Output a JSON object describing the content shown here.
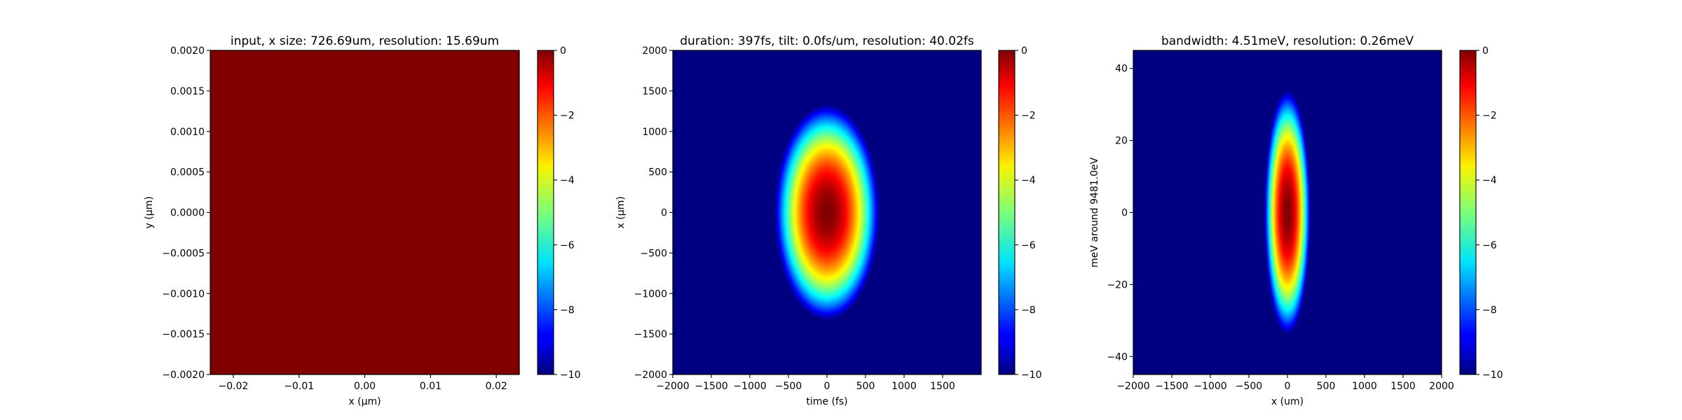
{
  "figure": {
    "background": "#ffffff"
  },
  "chart_data": [
    {
      "type": "heatmap",
      "title": "input, x size: 726.69um, resolution: 15.69um",
      "xlabel": "x ($\\mu$m)",
      "xlabel_display": "x (μm)",
      "ylabel": "y ($\\mu$m)",
      "ylabel_display": "y (μm)",
      "xlim": [
        -0.0235,
        0.0235
      ],
      "ylim": [
        -0.002,
        0.002
      ],
      "xticks": [
        -0.02,
        -0.01,
        0.0,
        0.01,
        0.02
      ],
      "xtick_labels": [
        "−0.02",
        "−0.01",
        "0.00",
        "0.01",
        "0.02"
      ],
      "yticks": [
        0.002,
        0.0015,
        0.001,
        0.0005,
        0.0,
        -0.0005,
        -0.001,
        -0.0015,
        -0.002
      ],
      "ytick_labels": [
        "0.0020",
        "0.0015",
        "0.0010",
        "0.0005",
        "0.0000",
        "−0.0005",
        "−0.0010",
        "−0.0015",
        "−0.0020"
      ],
      "field": {
        "kind": "uniform",
        "value": 0
      },
      "colormap": "jet",
      "colorbar": {
        "range": [
          -10,
          0
        ],
        "ticks": [
          0,
          -2,
          -4,
          -6,
          -8,
          -10
        ],
        "tick_labels": [
          "0",
          "−2",
          "−4",
          "−6",
          "−8",
          "−10"
        ]
      }
    },
    {
      "type": "heatmap",
      "title": "duration: 397fs, tilt: 0.0fs/um, resolution: 40.02fs",
      "xlabel": "time (fs)",
      "ylabel": "x (μm)",
      "xlim": [
        -2000,
        2000
      ],
      "ylim": [
        -2000,
        2000
      ],
      "xticks": [
        -2000,
        -1500,
        -1000,
        -500,
        0,
        500,
        1000,
        1500
      ],
      "xtick_labels": [
        "−2000",
        "−1500",
        "−1000",
        "−500",
        "0",
        "500",
        "1000",
        "1500"
      ],
      "yticks": [
        2000,
        1500,
        1000,
        500,
        0,
        -500,
        -1000,
        -1500,
        -2000
      ],
      "ytick_labels": [
        "2000",
        "1500",
        "1000",
        "500",
        "0",
        "−500",
        "−1000",
        "−1500",
        "−2000"
      ],
      "field": {
        "kind": "gaussian",
        "center": [
          0,
          0
        ],
        "half_width_at_min": [
          680,
          1330
        ],
        "floor": -10
      },
      "colormap": "jet",
      "colorbar": {
        "range": [
          -10,
          0
        ],
        "ticks": [
          0,
          -2,
          -4,
          -6,
          -8,
          -10
        ],
        "tick_labels": [
          "0",
          "−2",
          "−4",
          "−6",
          "−8",
          "−10"
        ]
      }
    },
    {
      "type": "heatmap",
      "title": "bandwidth: 4.51meV, resolution: 0.26meV",
      "xlabel": "x (um)",
      "ylabel": "meV around 9481.0eV",
      "xlim": [
        -2000,
        2000
      ],
      "ylim": [
        -45,
        45
      ],
      "xticks": [
        -2000,
        -1500,
        -1000,
        -500,
        0,
        500,
        1000,
        1500,
        2000
      ],
      "xtick_labels": [
        "−2000",
        "−1500",
        "−1000",
        "−500",
        "0",
        "500",
        "1000",
        "1500",
        "2000"
      ],
      "yticks": [
        40,
        20,
        0,
        -20,
        -40
      ],
      "ytick_labels": [
        "40",
        "20",
        "0",
        "−20",
        "−40"
      ],
      "field": {
        "kind": "gaussian",
        "center": [
          0,
          0
        ],
        "half_width_at_min": [
          300,
          34
        ],
        "floor": -10
      },
      "colormap": "jet",
      "colorbar": {
        "range": [
          -10,
          0
        ],
        "ticks": [
          0,
          -2,
          -4,
          -6,
          -8,
          -10
        ],
        "tick_labels": [
          "0",
          "−2",
          "−4",
          "−6",
          "−8",
          "−10"
        ]
      }
    }
  ]
}
